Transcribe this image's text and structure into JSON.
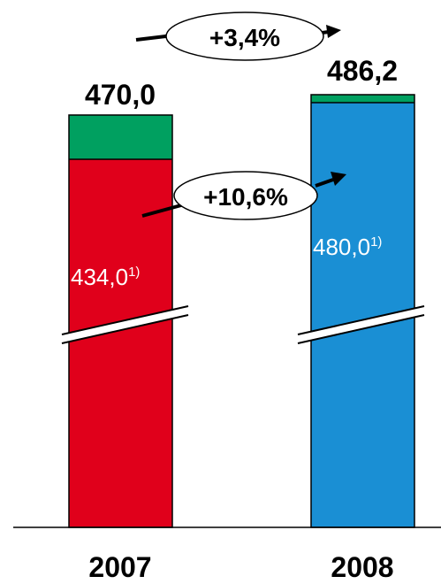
{
  "chart_data": {
    "type": "bar",
    "categories": [
      "2007",
      "2008"
    ],
    "totals": [
      "470,0",
      "486,2"
    ],
    "series": [
      {
        "values": [
          434.0,
          480.0
        ],
        "labels": [
          "434,0",
          "480,0"
        ],
        "footnote": "1)"
      },
      {
        "values": [
          36.0,
          6.2
        ]
      }
    ],
    "bar_colors": [
      "#e0001b",
      "#1a8fd4"
    ],
    "top_segment_color": "#00a060",
    "annotations": {
      "total_growth": "+3,4%",
      "segment_growth": "+10,6%"
    },
    "axis_break": true
  }
}
